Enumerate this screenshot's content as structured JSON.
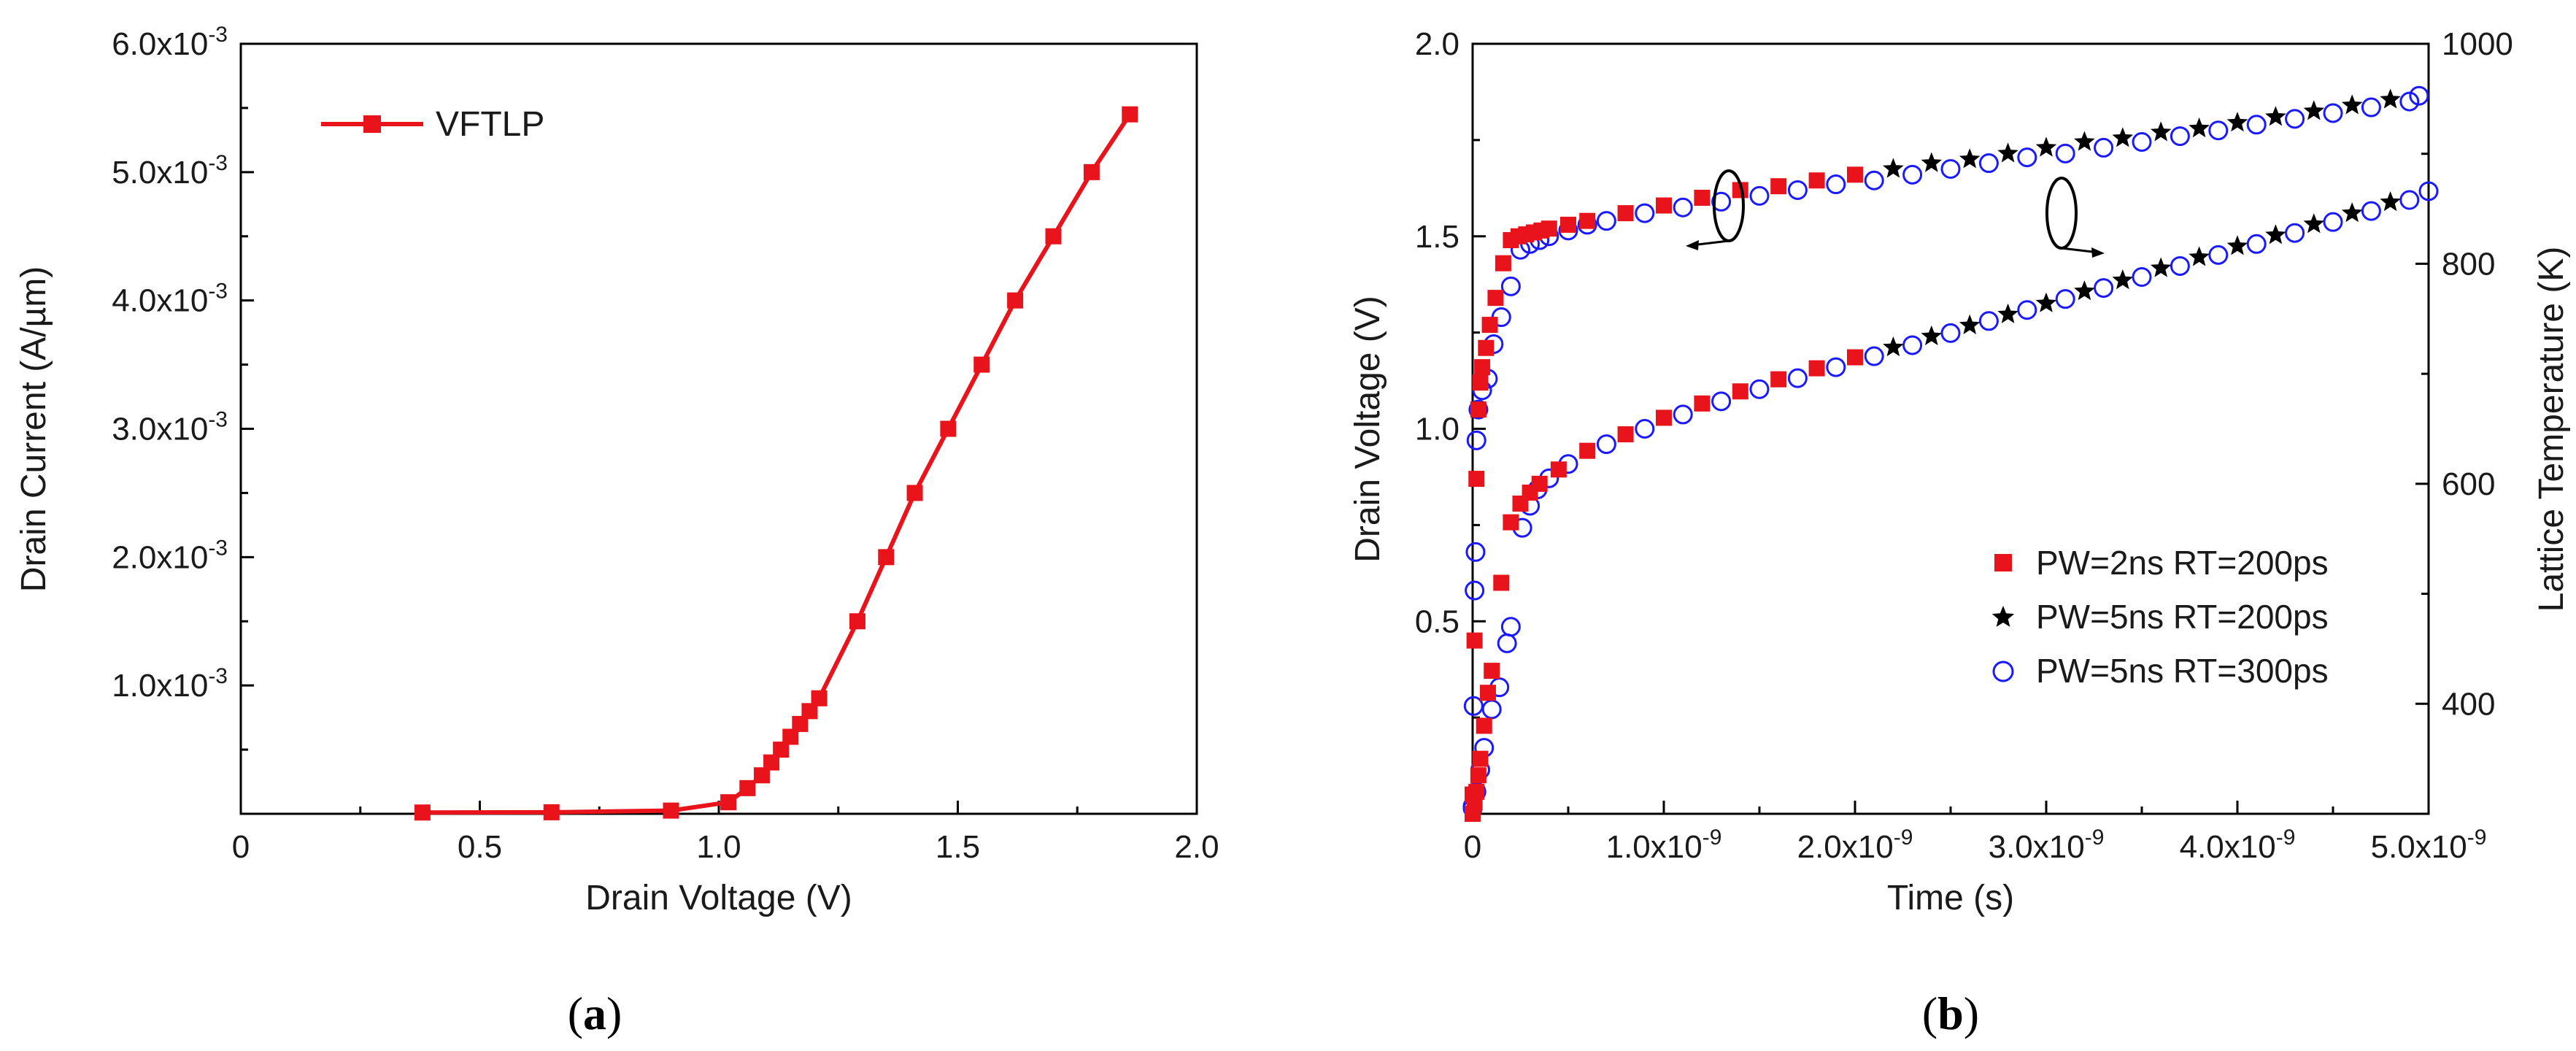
{
  "chart_data": [
    {
      "type": "line",
      "id": "a",
      "panel_label": "a",
      "xlabel": "Drain Voltage (V)",
      "ylabel": "Drain Current (A/µm)",
      "xlim": [
        0,
        2.0
      ],
      "ylim": [
        0,
        0.006
      ],
      "x_ticks": [
        0,
        0.5,
        1.0,
        1.5,
        2.0
      ],
      "x_tick_labels": [
        "0",
        "0.5",
        "1.0",
        "1.5",
        "2.0"
      ],
      "y_ticks": [
        0.001,
        0.002,
        0.003,
        0.004,
        0.005,
        0.006
      ],
      "y_tick_mantissas": [
        "1.0",
        "2.0",
        "3.0",
        "4.0",
        "5.0",
        "6.0"
      ],
      "y_tick_exponent": "-3",
      "color": "#e8131b",
      "series": [
        {
          "name": "VFTLP",
          "x": [
            0.38,
            0.65,
            0.9,
            1.02,
            1.06,
            1.09,
            1.11,
            1.13,
            1.15,
            1.17,
            1.19,
            1.21,
            1.29,
            1.35,
            1.41,
            1.48,
            1.55,
            1.62,
            1.7,
            1.78,
            1.86
          ],
          "y": [
            1e-05,
            1.2e-05,
            2.5e-05,
            9e-05,
            0.0002,
            0.0003,
            0.0004,
            0.0005,
            0.0006,
            0.0007,
            0.0008,
            0.0009,
            0.0015,
            0.002,
            0.0025,
            0.003,
            0.0035,
            0.004,
            0.0045,
            0.005,
            0.00545
          ]
        }
      ],
      "legend_position": "top-left"
    },
    {
      "type": "scatter",
      "id": "b",
      "panel_label": "b",
      "xlabel": "Time (s)",
      "ylabel": "Drain Voltage (V)",
      "y2label": "Lattice Temperature (K)",
      "xlim": [
        0,
        5e-09
      ],
      "ylim": [
        0,
        2.0
      ],
      "y2lim": [
        300,
        1000
      ],
      "x_ticks": [
        0,
        1e-09,
        2e-09,
        3e-09,
        4e-09,
        5e-09
      ],
      "x_tick_mantissas": [
        "0",
        "1.0",
        "2.0",
        "3.0",
        "4.0",
        "5.0"
      ],
      "x_tick_exponent": "-9",
      "y_ticks": [
        0.5,
        1.0,
        1.5,
        2.0
      ],
      "y_tick_labels": [
        "0.5",
        "1.0",
        "1.5",
        "2.0"
      ],
      "y2_ticks": [
        400,
        600,
        800,
        1000
      ],
      "y2_tick_labels": [
        "400",
        "600",
        "800",
        "1000"
      ],
      "legend_position": "bottom-right",
      "annotations": [
        "voltage curves → left axis",
        "temperature curves → right axis"
      ],
      "series": [
        {
          "name": "PW=2ns RT=200ps",
          "marker": "square",
          "color": "#e8131b",
          "voltage": {
            "t": [
              0.0,
              1e-11,
              2e-11,
              3e-11,
              4e-11,
              5e-11,
              7e-11,
              9e-11,
              1.2e-10,
              1.6e-10,
              2e-10,
              2.4e-10,
              2.8e-10,
              3.2e-10,
              3.6e-10,
              4e-10,
              5e-10,
              6e-10,
              8e-10,
              1e-09,
              1.2e-09,
              1.4e-09,
              1.6e-09,
              1.8e-09,
              2e-09
            ],
            "v": [
              0.05,
              0.45,
              0.87,
              1.05,
              1.12,
              1.16,
              1.21,
              1.27,
              1.34,
              1.43,
              1.49,
              1.5,
              1.505,
              1.51,
              1.515,
              1.52,
              1.53,
              1.54,
              1.56,
              1.58,
              1.6,
              1.62,
              1.63,
              1.645,
              1.66
            ]
          },
          "temperature": {
            "t": [
              0.0,
              1e-11,
              2e-11,
              3e-11,
              4e-11,
              6e-11,
              8e-11,
              1e-10,
              1.5e-10,
              2e-10,
              2.5e-10,
              3e-10,
              3.5e-10,
              4.5e-10,
              6e-10,
              8e-10,
              1e-09,
              1.2e-09,
              1.4e-09,
              1.6e-09,
              1.8e-09,
              2e-09
            ],
            "T": [
              300,
              310,
              320,
              335,
              350,
              380,
              410,
              430,
              510,
              565,
              582,
              592,
              600,
              613,
              630,
              645,
              660,
              673,
              684,
              695,
              705,
              715
            ]
          }
        },
        {
          "name": "PW=5ns RT=200ps",
          "marker": "star",
          "color": "#000000",
          "voltage": {
            "t": [
              2.2e-09,
              2.4e-09,
              2.6e-09,
              2.8e-09,
              3e-09,
              3.2e-09,
              3.4e-09,
              3.6e-09,
              3.8e-09,
              4e-09,
              4.2e-09,
              4.4e-09,
              4.6e-09,
              4.8e-09
            ],
            "v": [
              1.675,
              1.69,
              1.7,
              1.715,
              1.73,
              1.745,
              1.755,
              1.77,
              1.78,
              1.795,
              1.81,
              1.825,
              1.84,
              1.855
            ]
          },
          "temperature": {
            "t": [
              2.2e-09,
              2.4e-09,
              2.6e-09,
              2.8e-09,
              3e-09,
              3.2e-09,
              3.4e-09,
              3.6e-09,
              3.8e-09,
              4e-09,
              4.2e-09,
              4.4e-09,
              4.6e-09,
              4.8e-09
            ],
            "T": [
              724,
              734,
              744,
              754,
              764,
              775,
              785,
              796,
              806,
              816,
              826,
              836,
              846,
              856
            ]
          }
        },
        {
          "name": "PW=5ns RT=300ps",
          "marker": "open-circle",
          "color": "#1a1aff",
          "voltage": {
            "t": [
              0.0,
              5e-12,
              1e-11,
              1.5e-11,
              2e-11,
              3e-11,
              5e-11,
              8e-11,
              1.1e-10,
              1.5e-10,
              2e-10,
              2.5e-10,
              3e-10,
              3.5e-10,
              4e-10,
              5e-10,
              6e-10,
              7e-10,
              9e-10,
              1.1e-09,
              1.3e-09,
              1.5e-09,
              1.7e-09,
              1.9e-09,
              2.1e-09,
              2.3e-09,
              2.5e-09,
              2.7e-09,
              2.9e-09,
              3.1e-09,
              3.3e-09,
              3.5e-09,
              3.7e-09,
              3.9e-09,
              4.1e-09,
              4.3e-09,
              4.5e-09,
              4.7e-09,
              4.9e-09,
              4.95e-09
            ],
            "v": [
              0.02,
              0.28,
              0.58,
              0.68,
              0.97,
              1.05,
              1.1,
              1.13,
              1.22,
              1.29,
              1.37,
              1.465,
              1.48,
              1.49,
              1.5,
              1.515,
              1.53,
              1.54,
              1.56,
              1.575,
              1.59,
              1.605,
              1.62,
              1.635,
              1.645,
              1.66,
              1.675,
              1.69,
              1.705,
              1.715,
              1.73,
              1.745,
              1.76,
              1.775,
              1.79,
              1.805,
              1.82,
              1.835,
              1.85,
              1.865
            ]
          },
          "temperature": {
            "t": [
              0.0,
              2e-11,
              4e-11,
              6e-11,
              1e-10,
              1.4e-10,
              1.8e-10,
              2e-10,
              2.6e-10,
              3e-10,
              3.4e-10,
              4e-10,
              5e-10,
              7e-10,
              9e-10,
              1.1e-09,
              1.3e-09,
              1.5e-09,
              1.7e-09,
              1.9e-09,
              2.1e-09,
              2.3e-09,
              2.5e-09,
              2.7e-09,
              2.9e-09,
              3.1e-09,
              3.3e-09,
              3.5e-09,
              3.7e-09,
              3.9e-09,
              4.1e-09,
              4.3e-09,
              4.5e-09,
              4.7e-09,
              4.9e-09,
              5e-09
            ],
            "T": [
              305,
              320,
              340,
              360,
              395,
              415,
              455,
              470,
              560,
              580,
              595,
              605,
              618,
              636,
              650,
              663,
              675,
              686,
              696,
              706,
              716,
              726,
              737,
              748,
              758,
              768,
              778,
              788,
              798,
              808,
              818,
              828,
              838,
              848,
              858,
              866
            ]
          }
        }
      ]
    }
  ]
}
